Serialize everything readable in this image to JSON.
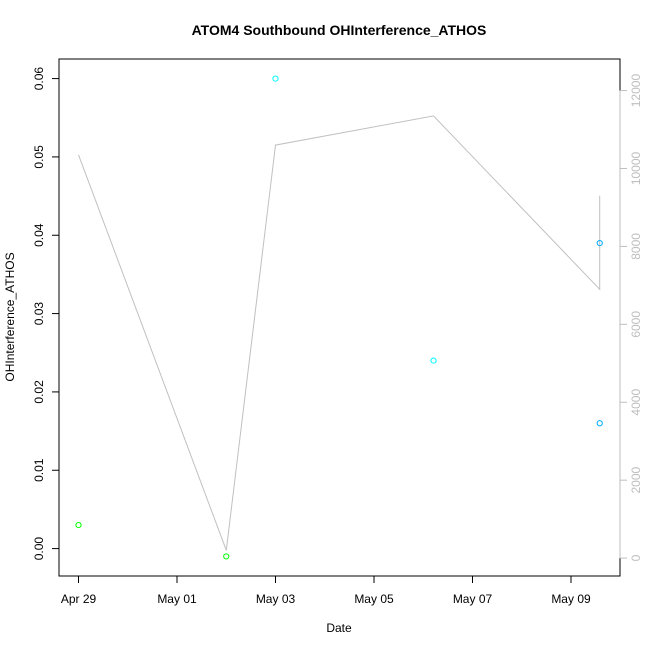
{
  "chart_data": {
    "type": "scatter",
    "title": "ATOM4 Southbound OHInterference_ATHOS",
    "xlabel": "Date",
    "ylabel": "OHInterference_ATHOS",
    "x_ticks": [
      "Apr 29",
      "May 01",
      "May 03",
      "May 05",
      "May 07",
      "May 09"
    ],
    "y_ticks": [
      "0.00",
      "0.01",
      "0.02",
      "0.03",
      "0.04",
      "0.05",
      "0.06"
    ],
    "y2_ticks": [
      "0",
      "2000",
      "4000",
      "6000",
      "8000",
      "10000",
      "12000"
    ],
    "ylim": [
      -0.0035,
      0.0625
    ],
    "y2lim": [
      -460,
      12810
    ],
    "points": [
      {
        "date": "2008-04-29 00:00",
        "y": 0.003,
        "color": "#00ff00"
      },
      {
        "date": "2008-05-02 00:00",
        "y": -0.001,
        "color": "#00ff00"
      },
      {
        "date": "2008-05-03 00:00",
        "y": 0.06,
        "color": "#00ffff"
      },
      {
        "date": "2008-05-06 05:00",
        "y": 0.024,
        "color": "#00ffff"
      },
      {
        "date": "2008-05-09 14:00",
        "y": 0.039,
        "color": "#00aaff"
      },
      {
        "date": "2008-05-09 14:00",
        "y": 0.016,
        "color": "#00aaff"
      }
    ],
    "line_series": {
      "color": "#c0c0c0",
      "points": [
        {
          "date": "2008-04-29 00:00",
          "y": 10350
        },
        {
          "date": "2008-05-02 00:00",
          "y": 200
        },
        {
          "date": "2008-05-03 00:00",
          "y": 10600
        },
        {
          "date": "2008-05-06 05:00",
          "y": 11350
        },
        {
          "date": "2008-05-09 14:00",
          "y": 6900
        },
        {
          "date": "2008-05-09 14:00",
          "y": 9300
        }
      ]
    },
    "grid": false
  }
}
